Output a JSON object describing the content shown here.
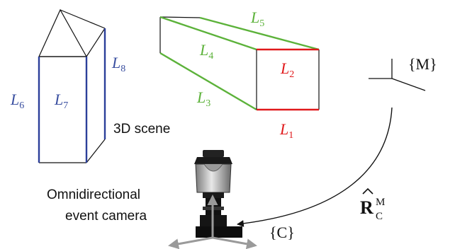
{
  "scene_label": "3D scene",
  "camera_label_line1": "Omnidirectional",
  "camera_label_line2": "event camera",
  "frame_M": "{M}",
  "frame_C": "{C}",
  "rotation_symbol": "R",
  "rotation_sup": "M",
  "rotation_sub": "C",
  "lines": [
    {
      "base": "L",
      "sub": "1",
      "color": "#e0191b"
    },
    {
      "base": "L",
      "sub": "2",
      "color": "#e0191b"
    },
    {
      "base": "L",
      "sub": "3",
      "color": "#5cb23a"
    },
    {
      "base": "L",
      "sub": "4",
      "color": "#5cb23a"
    },
    {
      "base": "L",
      "sub": "5",
      "color": "#5cb23a"
    },
    {
      "base": "L",
      "sub": "6",
      "color": "#3a4fa0"
    },
    {
      "base": "L",
      "sub": "7",
      "color": "#3a4fa0"
    },
    {
      "base": "L",
      "sub": "8",
      "color": "#3a4fa0"
    }
  ],
  "colors": {
    "red": "#e0191b",
    "green": "#5cb23a",
    "blue": "#2b3f9a",
    "black": "#111111",
    "gray_axis": "#9a9a9a"
  }
}
